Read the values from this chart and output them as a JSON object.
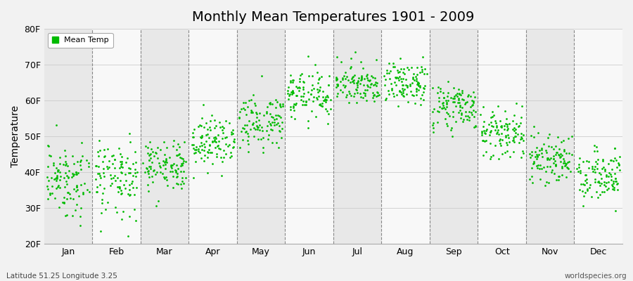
{
  "title": "Monthly Mean Temperatures 1901 - 2009",
  "ylabel": "Temperature",
  "xlabel_months": [
    "Jan",
    "Feb",
    "Mar",
    "Apr",
    "May",
    "Jun",
    "Jul",
    "Aug",
    "Sep",
    "Oct",
    "Nov",
    "Dec"
  ],
  "ytick_labels": [
    "20F",
    "30F",
    "40F",
    "50F",
    "60F",
    "70F",
    "80F"
  ],
  "ytick_values": [
    20,
    30,
    40,
    50,
    60,
    70,
    80
  ],
  "ylim": [
    20,
    80
  ],
  "legend_label": "Mean Temp",
  "dot_color": "#00BB00",
  "bg_color": "#f2f2f2",
  "plot_bg_color": "#e8e8e8",
  "alt_band_color": "#f8f8f8",
  "footer_left": "Latitude 51.25 Longitude 3.25",
  "footer_right": "worldspecies.org",
  "start_year": 1901,
  "end_year": 2009,
  "monthly_mean_F": [
    38.5,
    38.5,
    42.0,
    48.5,
    54.5,
    62.0,
    64.5,
    64.5,
    58.5,
    51.0,
    44.0,
    40.0
  ],
  "monthly_std_F": [
    4.5,
    4.5,
    3.5,
    3.5,
    3.5,
    3.5,
    3.0,
    3.0,
    3.5,
    3.5,
    3.5,
    3.5
  ],
  "monthly_extra_low_chance": [
    0.08,
    0.08,
    0.03,
    0.01,
    0.0,
    0.0,
    0.0,
    0.0,
    0.0,
    0.0,
    0.01,
    0.03
  ]
}
